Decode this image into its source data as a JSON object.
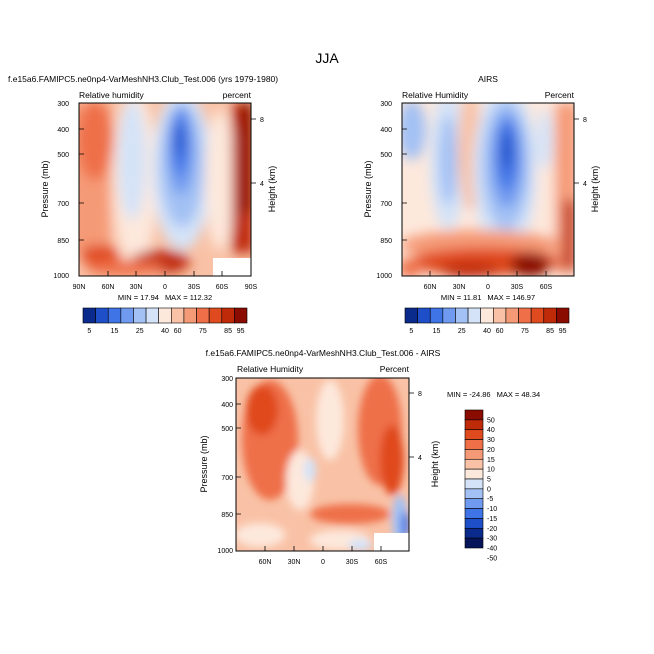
{
  "figure": {
    "title": "JJA"
  },
  "chart_data": [
    {
      "type": "heatmap",
      "id": "model",
      "title": "f.e15a6.FAMIPC5.ne0np4-VarMeshNH3.Club_Test.006 (yrs 1979-1980)",
      "left_label": "Relative humidity",
      "right_label": "percent",
      "ylabel": "Pressure (mb)",
      "y2label": "Height (km)",
      "xticks": [
        "90N",
        "60N",
        "30N",
        "0",
        "30S",
        "60S",
        "90S"
      ],
      "yticks": [
        "300",
        "400",
        "500",
        "700",
        "850",
        "1000"
      ],
      "y2ticks": [
        "8",
        "4"
      ],
      "stats": {
        "min_label": "MIN = ",
        "min": "17.94",
        "max_label": "MAX = ",
        "max": "112.32"
      },
      "colorbar": {
        "orientation": "horizontal",
        "labels": [
          "5",
          "15",
          "25",
          "40",
          "60",
          "75",
          "85",
          "95"
        ]
      }
    },
    {
      "type": "heatmap",
      "id": "obs",
      "title": "AIRS",
      "left_label": "Relative Humidity",
      "right_label": "Percent",
      "ylabel": "Pressure (mb)",
      "y2label": "Height (km)",
      "xticks": [
        "60N",
        "30N",
        "0",
        "30S",
        "60S"
      ],
      "yticks": [
        "300",
        "400",
        "500",
        "700",
        "850",
        "1000"
      ],
      "y2ticks": [
        "8",
        "4"
      ],
      "stats": {
        "min_label": "MIN = ",
        "min": "11.81",
        "max_label": "MAX = ",
        "max": "146.97"
      },
      "colorbar": {
        "orientation": "horizontal",
        "labels": [
          "5",
          "15",
          "25",
          "40",
          "60",
          "75",
          "85",
          "95"
        ]
      }
    },
    {
      "type": "heatmap",
      "id": "diff",
      "title": "f.e15a6.FAMIPC5.ne0np4-VarMeshNH3.Club_Test.006 - AIRS",
      "left_label": "Relative Humidity",
      "right_label": "Percent",
      "ylabel": "Pressure (mb)",
      "y2label": "Height (km)",
      "xticks": [
        "60N",
        "30N",
        "0",
        "30S",
        "60S"
      ],
      "yticks": [
        "300",
        "400",
        "500",
        "700",
        "850",
        "1000"
      ],
      "y2ticks": [
        "8",
        "4"
      ],
      "stats": {
        "min_label": "MIN = ",
        "min": "-24.86",
        "max_label": "MAX = ",
        "max": "48.34"
      },
      "colorbar": {
        "orientation": "vertical",
        "labels": [
          "50",
          "40",
          "30",
          "20",
          "15",
          "10",
          "5",
          "0",
          "-5",
          "-10",
          "-15",
          "-20",
          "-30",
          "-40",
          "-50"
        ]
      }
    }
  ],
  "palettes": {
    "rh": [
      "#0a2a8c",
      "#1e4fc8",
      "#3f74e6",
      "#6f9aef",
      "#a3c1f4",
      "#d4e3f8",
      "#fde8dc",
      "#f9c2a6",
      "#f59a76",
      "#ee6f48",
      "#e04a1f",
      "#bf2a08",
      "#8a0b00"
    ],
    "diff": [
      "#8a0b00",
      "#bf2a08",
      "#e04a1f",
      "#ee6f48",
      "#f59a76",
      "#f9c2a6",
      "#fde8dc",
      "#d4e3f8",
      "#a3c1f4",
      "#6f9aef",
      "#3f74e6",
      "#1e4fc8",
      "#0a2a8c",
      "#06155a"
    ]
  }
}
